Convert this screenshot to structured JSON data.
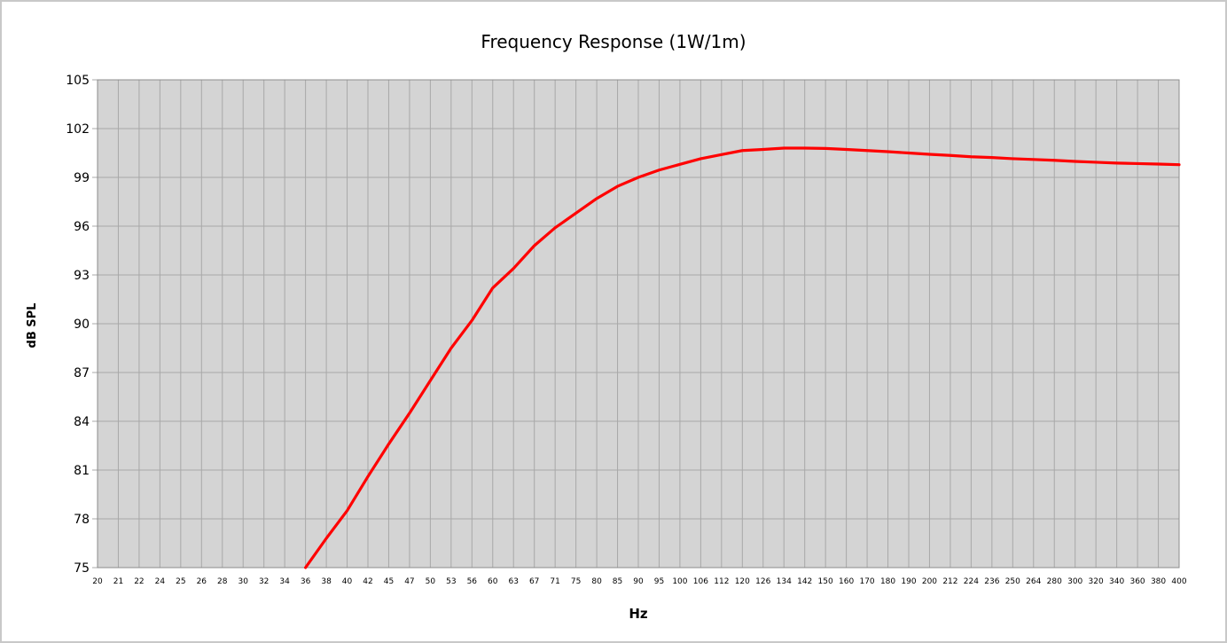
{
  "chart_data": {
    "type": "line",
    "title": "Frequency Response (1W/1m)",
    "xlabel": "Hz",
    "ylabel": "dB SPL",
    "ylim": [
      75,
      105
    ],
    "yticks": [
      "75",
      "78",
      "81",
      "84",
      "87",
      "90",
      "93",
      "96",
      "99",
      "102",
      "105"
    ],
    "categories": [
      "20",
      "21",
      "22",
      "24",
      "25",
      "26",
      "28",
      "30",
      "32",
      "34",
      "36",
      "38",
      "40",
      "42",
      "45",
      "47",
      "50",
      "53",
      "56",
      "60",
      "63",
      "67",
      "71",
      "75",
      "80",
      "85",
      "90",
      "95",
      "100",
      "106",
      "112",
      "120",
      "126",
      "134",
      "142",
      "150",
      "160",
      "170",
      "180",
      "190",
      "200",
      "212",
      "224",
      "236",
      "250",
      "264",
      "280",
      "300",
      "320",
      "340",
      "360",
      "380",
      "400"
    ],
    "grid": true,
    "colors": {
      "plot_background": "#d4d4d4",
      "grid": "#a8a8a8",
      "line": "#ff0000"
    },
    "series": [
      {
        "x": [
          36,
          38,
          40,
          42,
          45,
          47,
          50,
          53,
          56,
          60,
          63,
          67,
          71,
          75,
          80,
          85,
          90,
          95,
          100,
          106,
          112,
          120,
          126,
          134,
          142,
          150,
          160,
          170,
          180,
          190,
          200,
          212,
          224,
          236,
          250,
          264,
          280,
          300,
          320,
          340,
          360,
          380,
          400
        ],
        "values": [
          75.0,
          76.8,
          78.5,
          80.6,
          82.6,
          84.5,
          86.5,
          88.5,
          90.2,
          92.2,
          93.4,
          94.8,
          95.9,
          96.8,
          97.7,
          98.45,
          99.0,
          99.45,
          99.8,
          100.15,
          100.4,
          100.65,
          100.72,
          100.8,
          100.8,
          100.78,
          100.72,
          100.65,
          100.58,
          100.5,
          100.42,
          100.35,
          100.27,
          100.22,
          100.15,
          100.1,
          100.05,
          99.98,
          99.93,
          99.88,
          99.85,
          99.82,
          99.78
        ]
      }
    ]
  }
}
